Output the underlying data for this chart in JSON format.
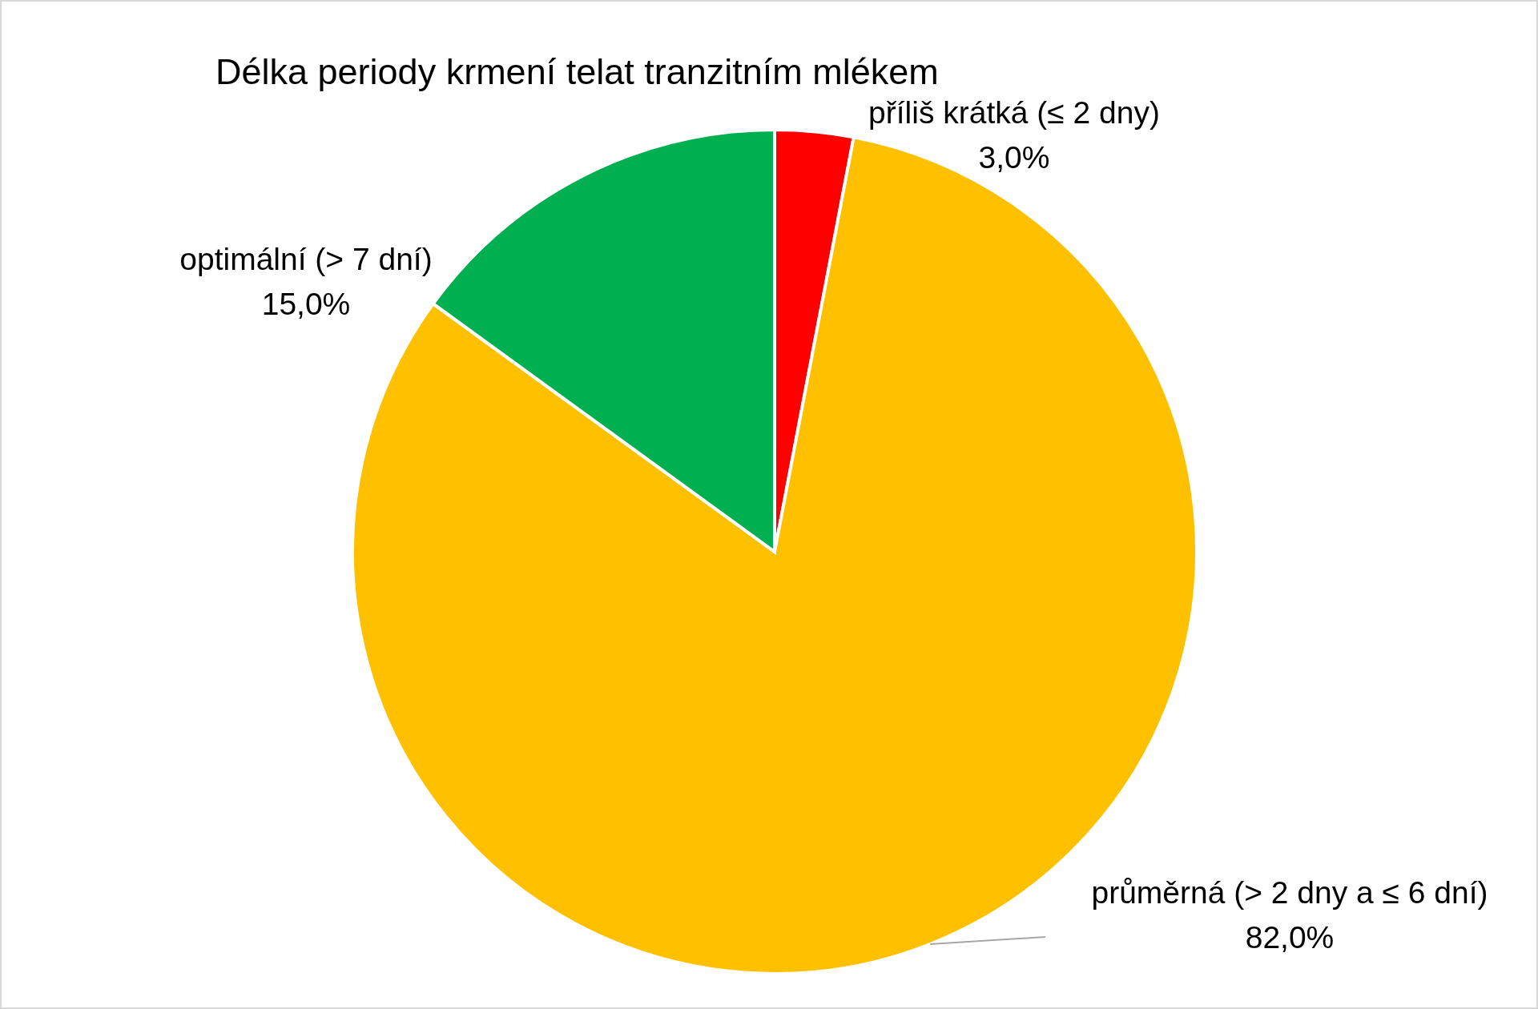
{
  "chart_data": {
    "type": "pie",
    "title": "Délka periody krmení telat tranzitním mlékem",
    "categories": [
      "příliš krátká (≤ 2 dny)",
      "průměrná (> 2 dny a ≤ 6 dní)",
      "optimální (> 7 dní)"
    ],
    "values": [
      3,
      82,
      15
    ],
    "colors": [
      "#ff0000",
      "#ffc000",
      "#00b050"
    ],
    "value_labels": [
      "3,0%",
      "82,0%",
      "15,0%"
    ]
  }
}
